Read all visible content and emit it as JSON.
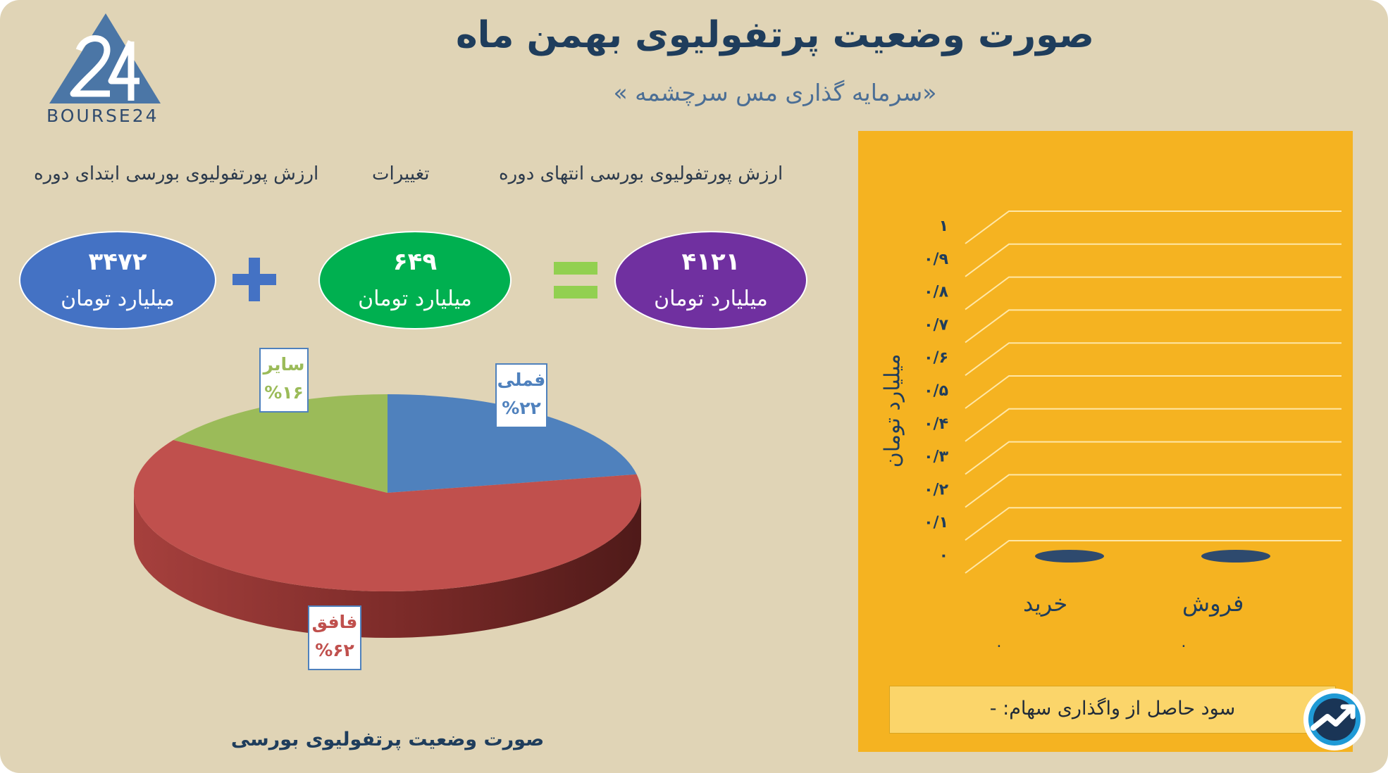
{
  "header": {
    "title": "صورت وضعیت پرتفولیوی بهمن ماه",
    "subtitle": "«سرمایه گذاری مس سرچشمه »",
    "logo_text": "BOURSE24"
  },
  "summary": {
    "end_label": "ارزش پورتفولیوی بورسی انتهای دوره",
    "change_label": "تغییرات",
    "start_label": "ارزش پورتفولیوی بورسی ابتدای دوره",
    "end_value": "۴۱۲۱",
    "change_value": "۶۴۹",
    "start_value": "۳۴۷۲",
    "unit": "میلیارد تومان",
    "colors": {
      "end": "#7030a0",
      "change": "#00b050",
      "start": "#4472c4",
      "plus": "#4472c4",
      "equals": "#92d050"
    }
  },
  "chart_data": [
    {
      "type": "pie",
      "title": "صورت وضعیت پرتفولیوی بورسی",
      "slices": [
        {
          "name": "فملی",
          "value": 22,
          "label": "%۲۲",
          "color": "#4f81bd"
        },
        {
          "name": "فافق",
          "value": 62,
          "label": "%۶۲",
          "color": "#c0504d"
        },
        {
          "name": "سایر",
          "value": 16,
          "label": "%۱۶",
          "color": "#9bbb59"
        }
      ]
    },
    {
      "type": "bar",
      "categories": [
        "خرید",
        "فروش"
      ],
      "values": [
        0,
        0
      ],
      "data_labels": [
        "۰",
        "۰"
      ],
      "ylabel": "میلیارد تومان",
      "ylim": [
        0,
        1
      ],
      "yticks": [
        0,
        0.1,
        0.2,
        0.3,
        0.4,
        0.5,
        0.6,
        0.7,
        0.8,
        0.9,
        1
      ],
      "ytick_labels": [
        "۰",
        "۰/۱",
        "۰/۲",
        "۰/۳",
        "۰/۴",
        "۰/۵",
        "۰/۶",
        "۰/۷",
        "۰/۸",
        "۰/۹",
        "۱"
      ],
      "grid": true,
      "colors": {
        "panel": "#f5b321",
        "bar": "#2e4a6e",
        "grid": "#ffe7a6"
      }
    }
  ],
  "footer": {
    "profit_text": "سود حاصل از واگذاری سهام: -"
  }
}
